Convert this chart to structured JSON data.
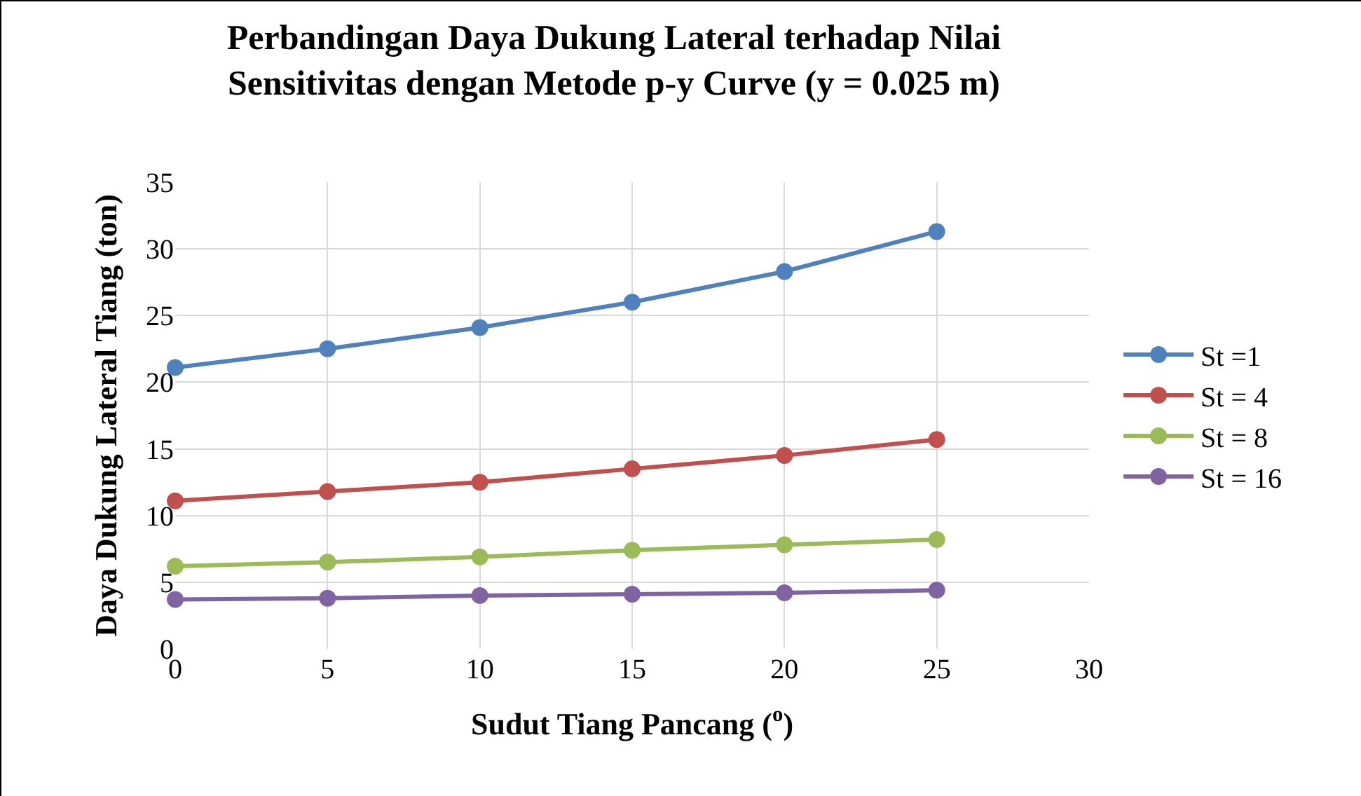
{
  "chart_data": {
    "type": "line",
    "title": "Perbandingan Daya Dukung Lateral terhadap Nilai Sensitivitas dengan Metode p-y Curve (y = 0.025 m)",
    "xlabel": "Sudut Tiang Pancang ($^{o}$)",
    "ylabel": "Daya Dukung Lateral Tiang (ton)",
    "x": [
      0,
      5,
      10,
      15,
      20,
      25
    ],
    "series": [
      {
        "name": "St =1",
        "color": "#4f81bd",
        "values": [
          21.1,
          22.5,
          24.1,
          26.0,
          28.3,
          31.3
        ]
      },
      {
        "name": "St = 4",
        "color": "#c0504d",
        "values": [
          11.1,
          11.8,
          12.5,
          13.5,
          14.5,
          15.7
        ]
      },
      {
        "name": "St = 8",
        "color": "#9bbb59",
        "values": [
          6.2,
          6.5,
          6.9,
          7.4,
          7.8,
          8.2
        ]
      },
      {
        "name": "St = 16",
        "color": "#8064a2",
        "values": [
          3.7,
          3.8,
          4.0,
          4.1,
          4.2,
          4.4
        ]
      }
    ],
    "xlim": [
      0,
      30
    ],
    "xticks": [
      0,
      5,
      10,
      15,
      20,
      25,
      30
    ],
    "ylim": [
      0,
      35
    ],
    "yticks": [
      0,
      5,
      10,
      15,
      20,
      25,
      30,
      35
    ],
    "grid": true,
    "legend": "right",
    "marker": "circle",
    "line_style": "solid"
  }
}
